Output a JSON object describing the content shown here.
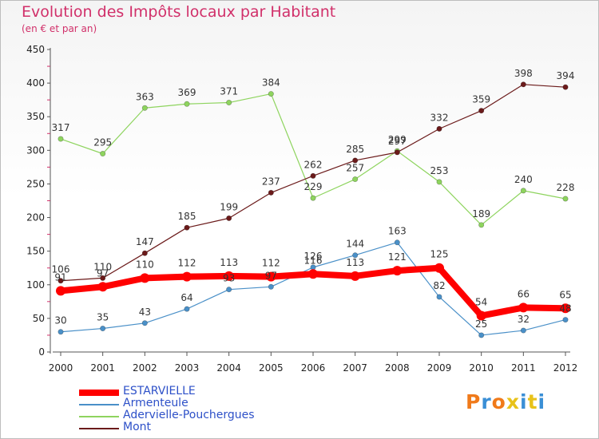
{
  "chart_data": {
    "type": "line",
    "title": "Evolution des Impôts locaux par Habitant",
    "subtitle": "(en € et par an)",
    "x": [
      "2000",
      "2001",
      "2002",
      "2003",
      "2004",
      "2005",
      "2006",
      "2007",
      "2008",
      "2009",
      "2010",
      "2011",
      "2012"
    ],
    "ylim": [
      0,
      450
    ],
    "yticks": [
      0,
      50,
      100,
      150,
      200,
      250,
      300,
      350,
      400,
      450
    ],
    "grid": false,
    "legend_position": "bottom-left",
    "series": [
      {
        "name": "ESTARVIELLE",
        "color": "#ff0000",
        "values": [
          91,
          97,
          110,
          112,
          113,
          112,
          116,
          113,
          121,
          125,
          54,
          66,
          65
        ]
      },
      {
        "name": "Armenteule",
        "color": "#4a90c8",
        "values": [
          30,
          35,
          43,
          64,
          93,
          97,
          126,
          144,
          163,
          82,
          25,
          32,
          48
        ]
      },
      {
        "name": "Adervielle-Pouchergues",
        "color": "#8ed45e",
        "values": [
          317,
          295,
          363,
          369,
          371,
          384,
          229,
          257,
          299,
          253,
          189,
          240,
          228
        ]
      },
      {
        "name": "Mont",
        "color": "#6b1a1a",
        "values": [
          106,
          110,
          147,
          185,
          199,
          237,
          262,
          285,
          297,
          332,
          359,
          398,
          394
        ]
      }
    ]
  },
  "logo": {
    "text": "Proxiti",
    "colors": [
      "#f07a1a",
      "#3a8fd6",
      "#f07a1a",
      "#e8c21a",
      "#3a8fd6",
      "#e8c21a",
      "#3a8fd6"
    ]
  }
}
